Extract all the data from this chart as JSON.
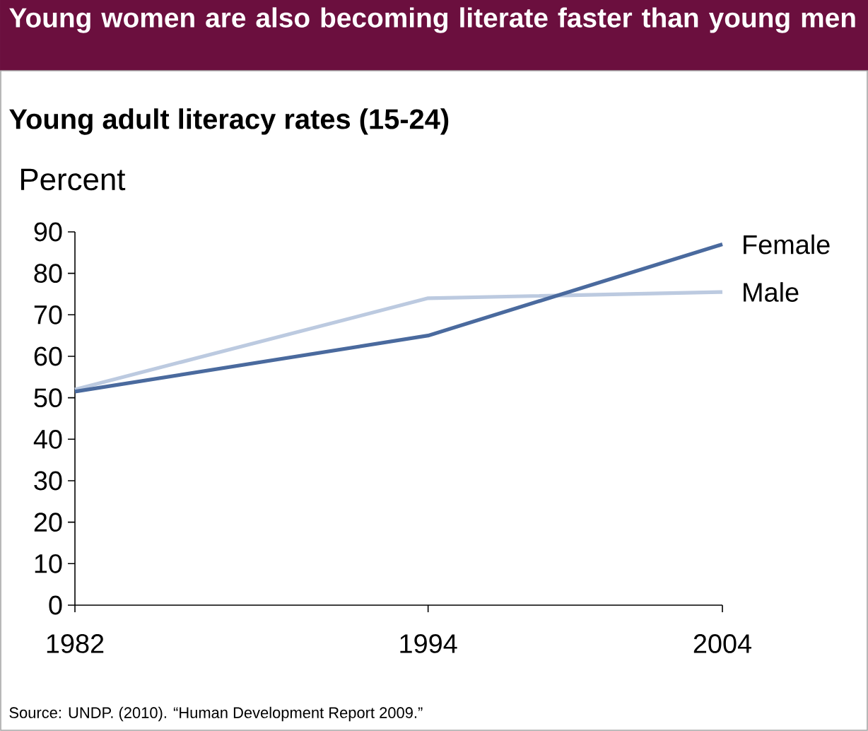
{
  "chart_data": {
    "type": "line",
    "title": "Young women are also becoming literate faster than young men",
    "subtitle": "Young adult literacy rates (15-24)",
    "ylabel": "Percent",
    "x": [
      1982,
      1994,
      2004
    ],
    "xlim": [
      1982,
      2004
    ],
    "xticks": [
      1982,
      1994,
      2004
    ],
    "ylim": [
      0,
      90
    ],
    "yticks": [
      0,
      10,
      20,
      30,
      40,
      50,
      60,
      70,
      80,
      90
    ],
    "series": [
      {
        "name": "Female",
        "color": "#4a6a9e",
        "values": [
          51.5,
          65,
          87
        ]
      },
      {
        "name": "Male",
        "color": "#bccae0",
        "values": [
          52,
          74,
          75.5
        ]
      }
    ],
    "grid": false,
    "legend": false,
    "marker": "none",
    "line_style": "solid",
    "annotations": [
      "Source: UNDP. (2010). “Human Development Report 2009.”"
    ]
  }
}
